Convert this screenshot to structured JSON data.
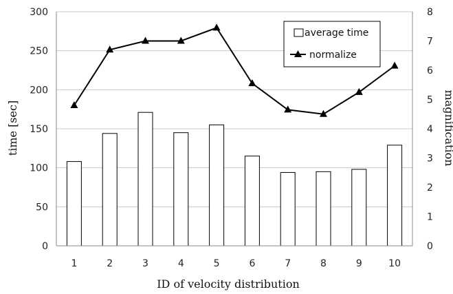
{
  "chart_data": {
    "type": "bar+line",
    "categories": [
      "1",
      "2",
      "3",
      "4",
      "5",
      "6",
      "7",
      "8",
      "9",
      "10"
    ],
    "series": [
      {
        "name": "average time",
        "type": "bar",
        "axis": "left",
        "values": [
          108,
          144,
          171,
          145,
          155,
          115,
          94,
          95,
          98,
          129
        ]
      },
      {
        "name": "normalize",
        "type": "line",
        "axis": "right",
        "marker": "triangle",
        "values": [
          4.8,
          6.7,
          7.0,
          7.0,
          7.45,
          5.55,
          4.65,
          4.5,
          5.25,
          6.15
        ]
      }
    ],
    "xlabel": "ID of velocity distribution",
    "ylabel": "time [sec]",
    "y2label": "magnification",
    "ylim": [
      0,
      300
    ],
    "yticks": [
      "0",
      "50",
      "100",
      "150",
      "200",
      "250",
      "300"
    ],
    "y2lim": [
      0,
      8
    ],
    "y2ticks": [
      "0",
      "1",
      "2",
      "3",
      "4",
      "5",
      "6",
      "7",
      "8"
    ],
    "grid": true,
    "legend": "top-right",
    "colors": {
      "bar_fill": "#ffffff",
      "bar_stroke": "#000000",
      "line": "#000000",
      "grid": "#c8c8c8"
    }
  }
}
